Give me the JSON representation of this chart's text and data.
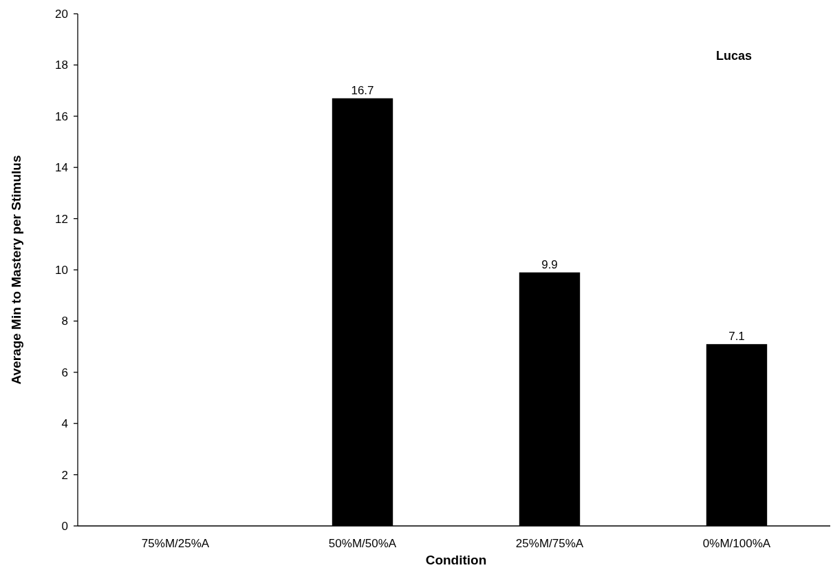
{
  "chart_data": {
    "type": "bar",
    "title": "Lucas",
    "xlabel": "Condition",
    "ylabel": "Average Min to Mastery per Stimulus",
    "categories": [
      "75%M/25%A",
      "50%M/50%A",
      "25%M/75%A",
      "0%M/100%A"
    ],
    "values": [
      null,
      16.7,
      9.9,
      7.1
    ],
    "color": "#000000",
    "ylim": [
      0,
      20
    ],
    "yticks": [
      0,
      2,
      4,
      6,
      8,
      10,
      12,
      14,
      16,
      18,
      20
    ],
    "grid": false,
    "data_labels": true
  }
}
